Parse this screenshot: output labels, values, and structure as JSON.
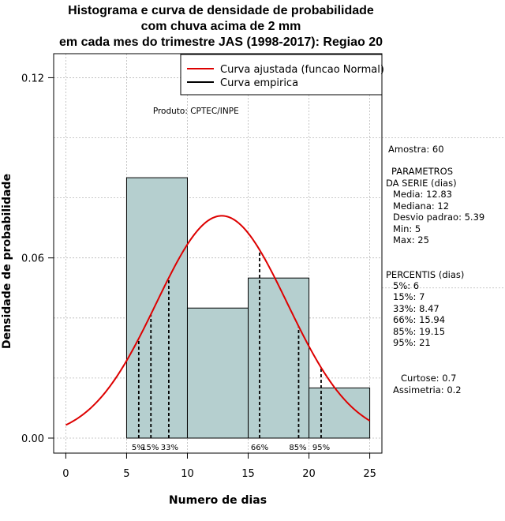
{
  "title_lines": [
    "Histograma e curva de densidade de probabilidade",
    "com chuva acima de 2 mm",
    "em cada mes do trimestre JAS (1998-2017): Regiao 20"
  ],
  "product_label": "Produto: CPTEC/INPE",
  "side_panel": {
    "sample": "Amostra: 60",
    "params_title_1": "PARAMETROS",
    "params_title_2": "DA SERIE (dias)",
    "media": "Media: 12.83",
    "mediana": "Mediana: 12",
    "desvio": "Desvio padrao: 5.39",
    "min": "Min: 5",
    "max": "Max: 25",
    "percentis_title": "PERCENTIS (dias)",
    "p5": "5%: 6",
    "p15": "15%: 7",
    "p33": "33%: 8.47",
    "p66": "66%: 15.94",
    "p85": "85%: 19.15",
    "p95": "95%: 21",
    "curtose": "Curtose: 0.7",
    "assimetria": "Assimetria: 0.2"
  },
  "chart_data": {
    "type": "bar",
    "title": "Histograma e curva de densidade de probabilidade com chuva acima de 2 mm em cada mes do trimestre JAS (1998-2017): Regiao 20",
    "xlabel": "Numero de dias",
    "ylabel": "Densidade de probabilidade",
    "xlim": [
      -1,
      26
    ],
    "ylim": [
      -0.005,
      0.128
    ],
    "x_ticks": [
      0,
      5,
      10,
      15,
      20,
      25
    ],
    "y_ticks": [
      0.0,
      0.06,
      0.12
    ],
    "y_tick_labels": [
      "0.00",
      "0.06",
      "0.12"
    ],
    "bins": [
      {
        "from": 5,
        "to": 10,
        "density": 0.0867
      },
      {
        "from": 10,
        "to": 15,
        "density": 0.0433
      },
      {
        "from": 15,
        "to": 20,
        "density": 0.0533
      },
      {
        "from": 20,
        "to": 25,
        "density": 0.0167
      }
    ],
    "normal_fit": {
      "mean": 12.83,
      "sd": 5.39,
      "x_range": [
        0,
        25
      ],
      "color": "#dd0000"
    },
    "percentiles": [
      {
        "label": "5%",
        "value": 6
      },
      {
        "label": "15%",
        "value": 7
      },
      {
        "label": "33%",
        "value": 8.47
      },
      {
        "label": "66%",
        "value": 15.94
      },
      {
        "label": "85%",
        "value": 19.15
      },
      {
        "label": "95%",
        "value": 21
      }
    ],
    "legend": {
      "position": "top-right",
      "entries": [
        {
          "label": "Curva ajustada (funcao Normal)",
          "color": "#dd0000"
        },
        {
          "label": "Curva empirica",
          "color": "#000000"
        }
      ]
    },
    "grid": true,
    "bar_color": "#b5cfcf",
    "curve_color": "#dd0000"
  }
}
